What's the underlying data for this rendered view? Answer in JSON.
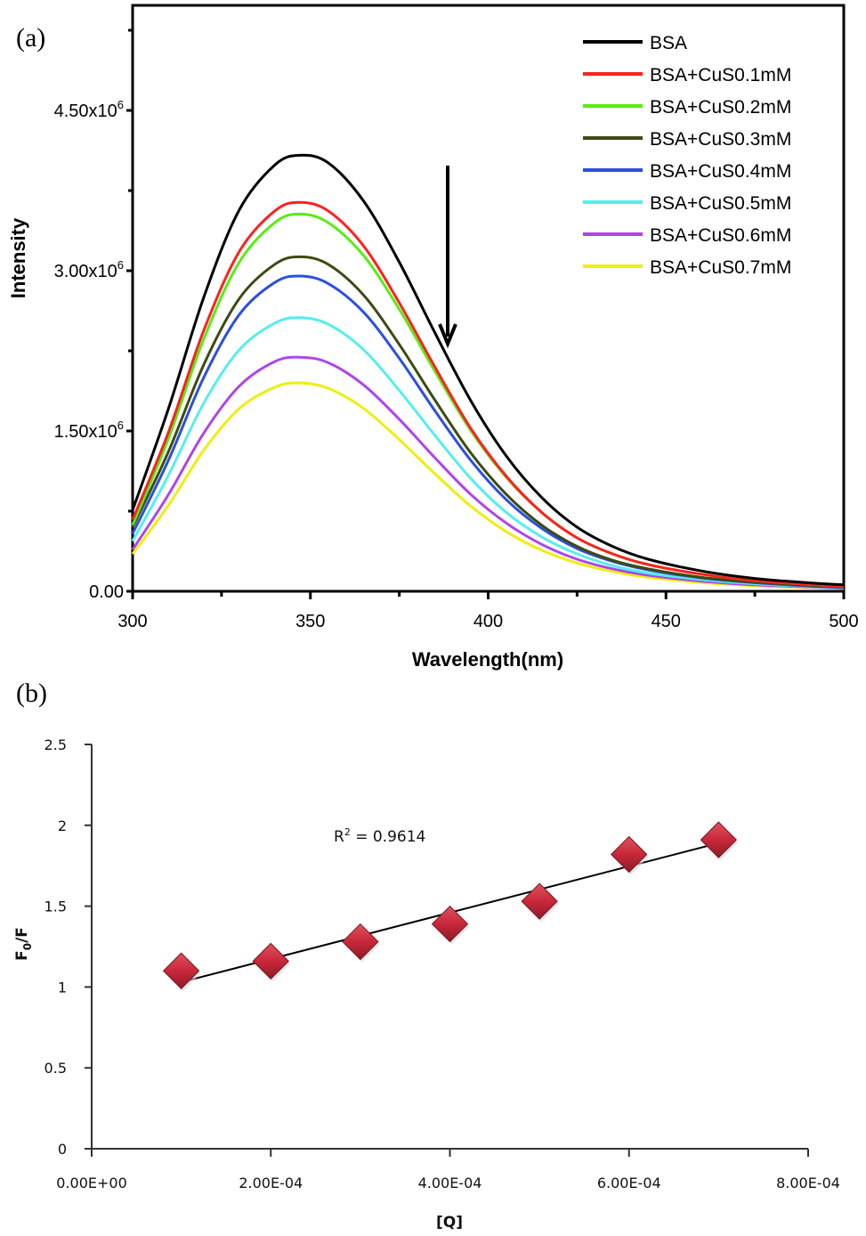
{
  "chart_data": [
    {
      "panel": "(a)",
      "type": "line",
      "title": "",
      "xlabel": "Wavelength(nm)",
      "ylabel": "Intensity",
      "xlim": [
        300,
        500
      ],
      "ylim": [
        0,
        5400000
      ],
      "xticks": [
        300,
        350,
        400,
        450,
        500
      ],
      "xtick_labels": [
        "300",
        "350",
        "400",
        "450",
        "500"
      ],
      "yticks": [
        0,
        1500000,
        3000000,
        4500000
      ],
      "ytick_labels": [
        {
          "base": "0.00",
          "exp": ""
        },
        {
          "base": "1.50x10",
          "exp": "6"
        },
        {
          "base": "3.00x10",
          "exp": "6"
        },
        {
          "base": "4.50x10",
          "exp": "6"
        }
      ],
      "grid": false,
      "legend_position": "top-right",
      "annotation": "downward arrow indicating decreasing intensity with increasing CuS concentration",
      "x": [
        300,
        310,
        320,
        330,
        340,
        347,
        355,
        365,
        375,
        385,
        395,
        405,
        415,
        425,
        435,
        445,
        460,
        475,
        490,
        500
      ],
      "series": [
        {
          "name": "BSA",
          "color": "#000000",
          "peak": 4080000,
          "values": [
            760000,
            1700000,
            2750000,
            3570000,
            3990000,
            4080000,
            4010000,
            3650000,
            3080000,
            2420000,
            1790000,
            1270000,
            880000,
            600000,
            420000,
            300000,
            190000,
            120000,
            80000,
            60000
          ]
        },
        {
          "name": "BSA+CuS0.1mM",
          "color": "#ff2020",
          "peak": 3640000,
          "values": [
            670000,
            1480000,
            2440000,
            3180000,
            3560000,
            3640000,
            3560000,
            3230000,
            2700000,
            2100000,
            1530000,
            1080000,
            740000,
            500000,
            350000,
            250000,
            160000,
            100000,
            65000,
            45000
          ]
        },
        {
          "name": "BSA+CuS0.2mM",
          "color": "#55ee10",
          "peak": 3530000,
          "values": [
            620000,
            1420000,
            2360000,
            3080000,
            3450000,
            3530000,
            3450000,
            3140000,
            2640000,
            2060000,
            1510000,
            1070000,
            740000,
            500000,
            350000,
            250000,
            160000,
            100000,
            65000,
            45000
          ]
        },
        {
          "name": "BSA+CuS0.3mM",
          "color": "#3d4a12",
          "peak": 3130000,
          "values": [
            600000,
            1300000,
            2120000,
            2740000,
            3060000,
            3130000,
            3060000,
            2770000,
            2310000,
            1790000,
            1300000,
            910000,
            620000,
            420000,
            290000,
            210000,
            130000,
            85000,
            55000,
            40000
          ]
        },
        {
          "name": "BSA+CuS0.4mM",
          "color": "#2a4fe0",
          "peak": 2950000,
          "values": [
            540000,
            1220000,
            2000000,
            2590000,
            2890000,
            2950000,
            2880000,
            2610000,
            2180000,
            1690000,
            1230000,
            860000,
            590000,
            400000,
            280000,
            200000,
            125000,
            80000,
            50000,
            35000
          ]
        },
        {
          "name": "BSA+CuS0.5mM",
          "color": "#55eeee",
          "peak": 2560000,
          "values": [
            470000,
            1080000,
            1760000,
            2260000,
            2510000,
            2560000,
            2500000,
            2260000,
            1880000,
            1460000,
            1060000,
            740000,
            510000,
            350000,
            240000,
            170000,
            110000,
            70000,
            45000,
            32000
          ]
        },
        {
          "name": "BSA+CuS0.6mM",
          "color": "#b044e8",
          "peak": 2190000,
          "values": [
            390000,
            900000,
            1480000,
            1920000,
            2150000,
            2190000,
            2140000,
            1930000,
            1610000,
            1250000,
            910000,
            640000,
            440000,
            300000,
            210000,
            150000,
            95000,
            60000,
            40000,
            28000
          ]
        },
        {
          "name": "BSA+CuS0.7mM",
          "color": "#eeee10",
          "peak": 1950000,
          "values": [
            350000,
            800000,
            1320000,
            1710000,
            1910000,
            1950000,
            1900000,
            1710000,
            1420000,
            1100000,
            800000,
            560000,
            385000,
            265000,
            185000,
            130000,
            82000,
            52000,
            35000,
            25000
          ]
        }
      ]
    },
    {
      "panel": "(b)",
      "type": "scatter",
      "title": "",
      "xlabel": "[Q]",
      "ylabel": "F0/F",
      "ylabel_parts": {
        "main": "F",
        "sub": "0",
        "rest": "/F"
      },
      "xlim": [
        0,
        0.0008
      ],
      "ylim": [
        0,
        2.5
      ],
      "xticks": [
        0,
        0.0002,
        0.0004,
        0.0006,
        0.0008
      ],
      "xtick_labels": [
        "0.00E+00",
        "2.00E-04",
        "4.00E-04",
        "6.00E-04",
        "8.00E-04"
      ],
      "yticks": [
        0,
        0.5,
        1,
        1.5,
        2,
        2.5
      ],
      "ytick_labels": [
        "0",
        "0.5",
        "1",
        "1.5",
        "2",
        "2.5"
      ],
      "grid": false,
      "marker": "diamond",
      "marker_color": "#c8283a",
      "x": [
        0.0001,
        0.0002,
        0.0003,
        0.0004,
        0.0005,
        0.0006,
        0.0007
      ],
      "y": [
        1.1,
        1.16,
        1.28,
        1.39,
        1.53,
        1.82,
        1.91
      ],
      "trendline": {
        "type": "linear",
        "x_range": [
          0.0001,
          0.0007
        ],
        "y_start": 1.03,
        "y_end": 1.89
      },
      "annotation": {
        "label": "R",
        "sup": "2",
        "rest": " = 0.9614"
      }
    }
  ]
}
